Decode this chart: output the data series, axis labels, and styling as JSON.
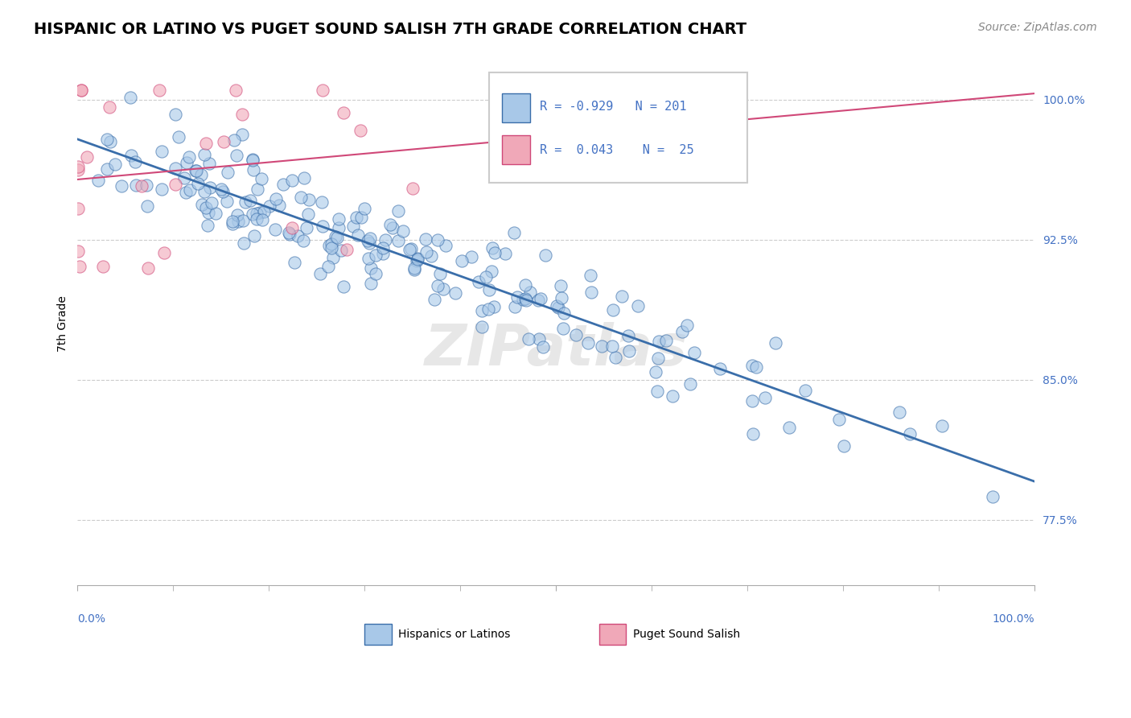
{
  "title": "HISPANIC OR LATINO VS PUGET SOUND SALISH 7TH GRADE CORRELATION CHART",
  "source": "Source: ZipAtlas.com",
  "ylabel": "7th Grade",
  "xlim": [
    0.0,
    1.0
  ],
  "ylim": [
    0.74,
    1.02
  ],
  "yticks": [
    0.775,
    0.85,
    0.925,
    1.0
  ],
  "ytick_labels": [
    "77.5%",
    "85.0%",
    "92.5%",
    "100.0%"
  ],
  "blue_R": -0.929,
  "blue_N": 201,
  "pink_R": 0.043,
  "pink_N": 25,
  "blue_color": "#a8c8e8",
  "blue_line_color": "#3a6eaa",
  "pink_color": "#f0a8b8",
  "pink_line_color": "#d04878",
  "legend_label_blue": "Hispanics or Latinos",
  "legend_label_pink": "Puget Sound Salish",
  "watermark": "ZIPatlas",
  "title_fontsize": 14,
  "axis_label_fontsize": 10,
  "tick_fontsize": 10,
  "source_fontsize": 10
}
